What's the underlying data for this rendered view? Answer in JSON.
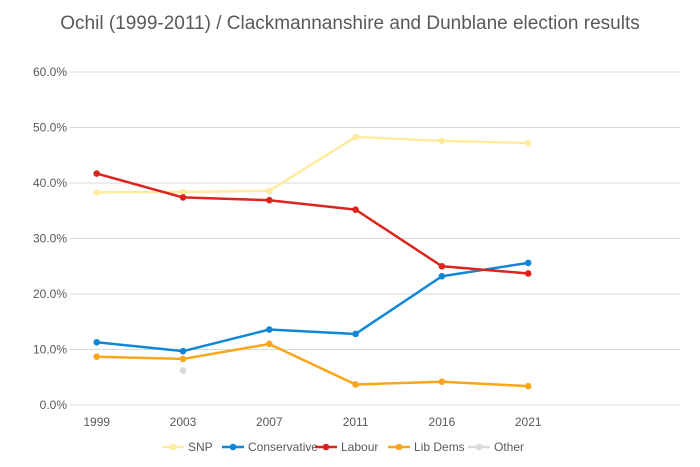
{
  "chart_data": {
    "type": "line",
    "title": "Ochil (1999-2011) / Clackmannanshire and Dunblane election results",
    "categories": [
      "1999",
      "2003",
      "2007",
      "2011",
      "2016",
      "2021"
    ],
    "y_ticks": [
      "0.0%",
      "10.0%",
      "20.0%",
      "30.0%",
      "40.0%",
      "50.0%",
      "60.0%"
    ],
    "ylim": [
      0,
      60
    ],
    "grid": true,
    "legend_position": "bottom",
    "series": [
      {
        "name": "SNP",
        "color": "#FFEBA0",
        "values": [
          38.3,
          38.4,
          38.6,
          48.3,
          47.6,
          47.2
        ]
      },
      {
        "name": "Conservative",
        "color": "#0F87D6",
        "values": [
          11.3,
          9.7,
          13.6,
          12.8,
          23.2,
          25.6
        ]
      },
      {
        "name": "Labour",
        "color": "#DC241F",
        "values": [
          41.7,
          37.4,
          36.9,
          35.2,
          25.0,
          23.7
        ]
      },
      {
        "name": "Lib Dems",
        "color": "#FAA61A",
        "values": [
          8.7,
          8.3,
          11.0,
          3.7,
          4.2,
          3.4
        ]
      },
      {
        "name": "Other",
        "color": "#D9D9D9",
        "values": [
          null,
          6.2,
          null,
          null,
          null,
          null
        ]
      }
    ]
  }
}
